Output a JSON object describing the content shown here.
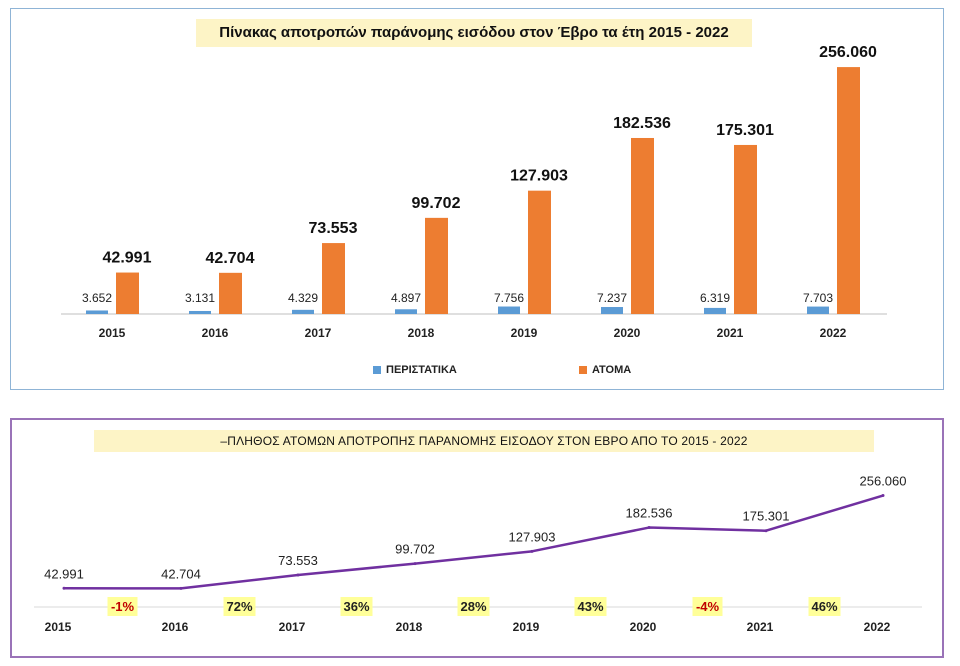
{
  "colors": {
    "incidents": "#5b9bd5",
    "persons": "#ed7d31",
    "line": "#7030a0",
    "pct_bg": "#ffff99",
    "pct_negative": "#c00000",
    "pct_positive": "#222222"
  },
  "chart_data": [
    {
      "type": "bar",
      "title": "Πίνακας αποτροπών παράνομης εισόδου στον Έβρο τα έτη 2015 - 2022",
      "categories": [
        "2015",
        "2016",
        "2017",
        "2018",
        "2019",
        "2020",
        "2021",
        "2022"
      ],
      "series": [
        {
          "name": "ΠΕΡΙΣΤΑΤΙΚΑ",
          "values": [
            3652,
            3131,
            4329,
            4897,
            7756,
            7237,
            6319,
            7703
          ],
          "labels": [
            "3.652",
            "3.131",
            "4.329",
            "4.897",
            "7.756",
            "7.237",
            "6.319",
            "7.703"
          ]
        },
        {
          "name": "ΑΤΟΜΑ",
          "values": [
            42991,
            42704,
            73553,
            99702,
            127903,
            182536,
            175301,
            256060
          ],
          "labels": [
            "42.991",
            "42.704",
            "73.553",
            "99.702",
            "127.903",
            "182.536",
            "175.301",
            "256.060"
          ]
        }
      ],
      "ylim": [
        0,
        280000
      ],
      "legend": "bottom"
    },
    {
      "type": "line",
      "title": "–ΠΛΗΘΟΣ ΑΤΟΜΩΝ ΑΠΟΤΡΟΠΗΣ ΠΑΡΑΝΟΜΗΣ ΕΙΣΟΔΟΥ ΣΤΟΝ ΕΒΡΟ  ΑΠΟ ΤΟ   2015   -  2022",
      "categories": [
        "2015",
        "2016",
        "2017",
        "2018",
        "2019",
        "2020",
        "2021",
        "2022"
      ],
      "values": [
        42991,
        42704,
        73553,
        99702,
        127903,
        182536,
        175301,
        256060
      ],
      "labels": [
        "42.991",
        "42.704",
        "73.553",
        "99.702",
        "127.903",
        "182.536",
        "175.301",
        "256.060"
      ],
      "changes": [
        "-1%",
        "72%",
        "36%",
        "28%",
        "43%",
        "-4%",
        "46%"
      ],
      "ylim": [
        0,
        340000
      ]
    }
  ]
}
